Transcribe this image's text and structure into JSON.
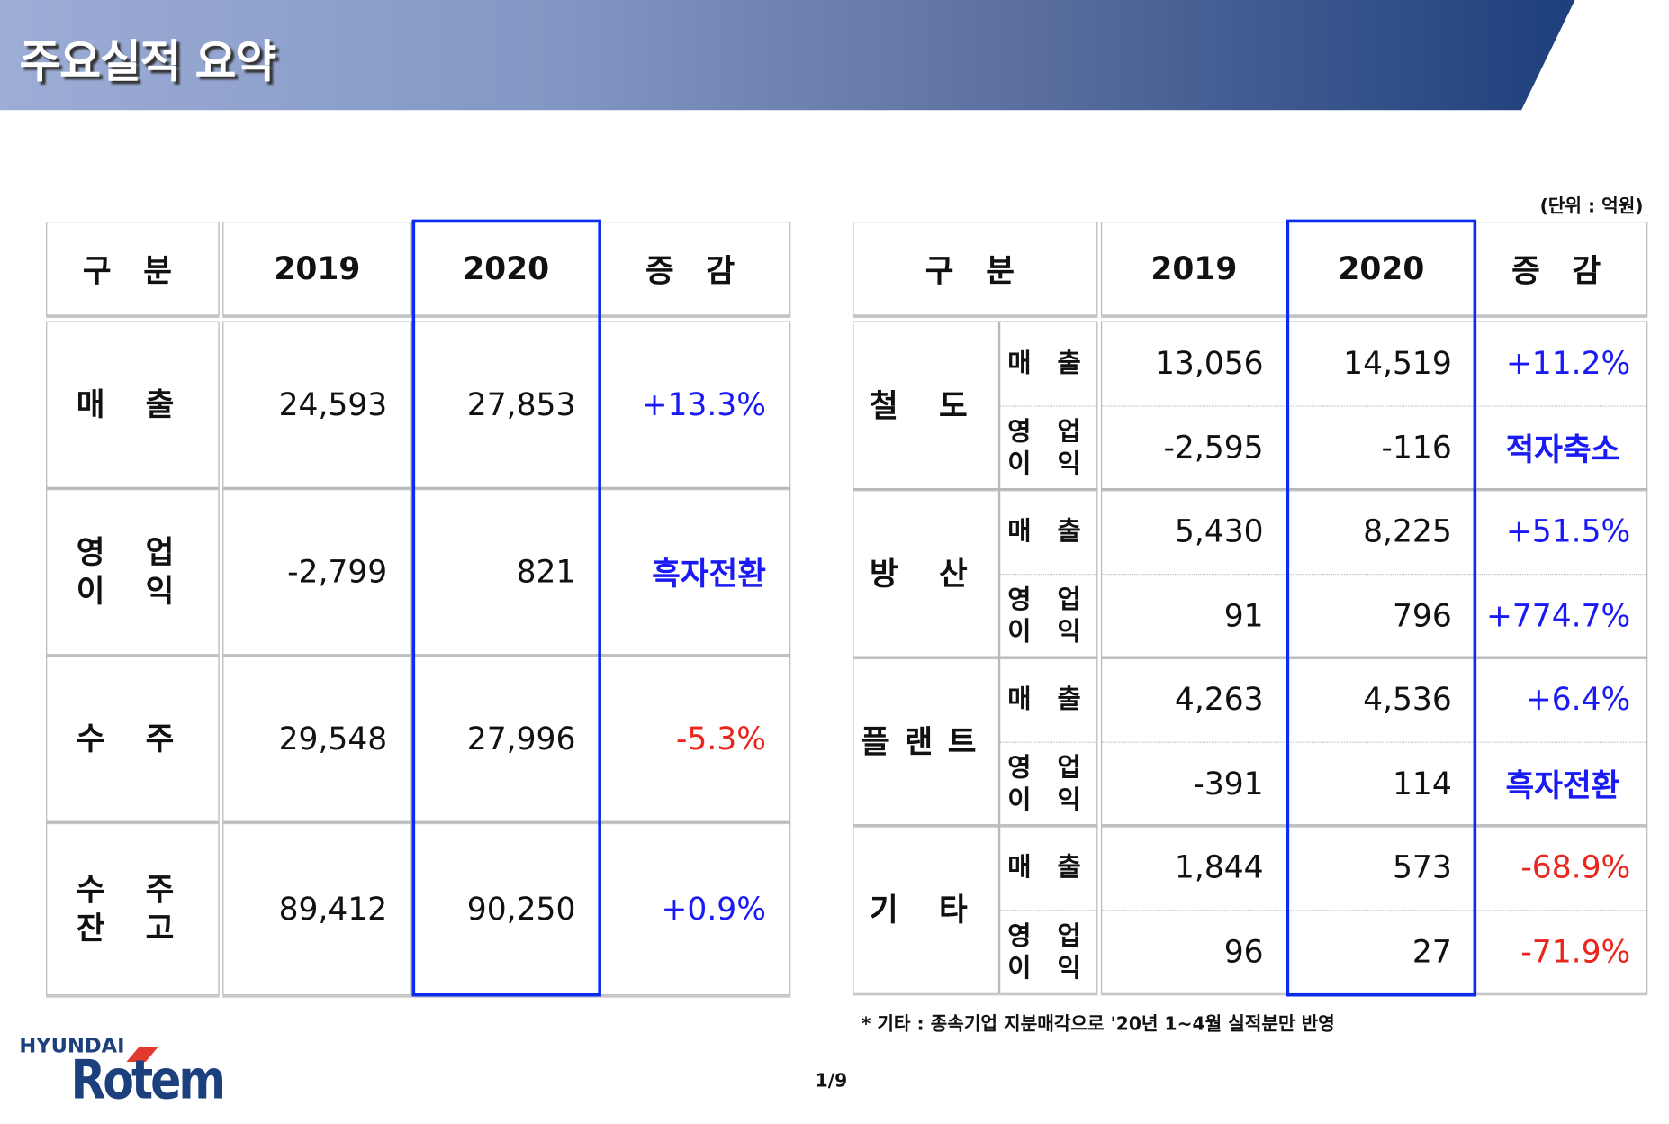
{
  "header": {
    "title": "주요실적 요약"
  },
  "unit_note": "(단위 : 억원)",
  "left_table": {
    "headers": [
      "구 분",
      "2019",
      "2020",
      "증 감"
    ],
    "rows": [
      {
        "label": "매 출",
        "y2019": "24,593",
        "y2020": "27,853",
        "change": "+13.3%",
        "change_color": "blue"
      },
      {
        "label": "영 업\n이 익",
        "y2019": "-2,799",
        "y2020": "821",
        "change": "흑자전환",
        "change_color": "blue"
      },
      {
        "label": "수 주",
        "y2019": "29,548",
        "y2020": "27,996",
        "change": "-5.3%",
        "change_color": "red"
      },
      {
        "label": "수 주\n잔 고",
        "y2019": "89,412",
        "y2020": "90,250",
        "change": "+0.9%",
        "change_color": "blue"
      }
    ]
  },
  "right_table": {
    "headers": [
      "구 분",
      "2019",
      "2020",
      "증 감"
    ],
    "groups": [
      {
        "label": "철 도",
        "rows": [
          {
            "metric": "매 출",
            "y2019": "13,056",
            "y2020": "14,519",
            "change": "+11.2%",
            "change_color": "blue"
          },
          {
            "metric": "영 업\n이 익",
            "y2019": "-2,595",
            "y2020": "-116",
            "change": "적자축소",
            "change_color": "blue"
          }
        ]
      },
      {
        "label": "방 산",
        "rows": [
          {
            "metric": "매 출",
            "y2019": "5,430",
            "y2020": "8,225",
            "change": "+51.5%",
            "change_color": "blue"
          },
          {
            "metric": "영 업\n이 익",
            "y2019": "91",
            "y2020": "796",
            "change": "+774.7%",
            "change_color": "blue"
          }
        ]
      },
      {
        "label": "플랜트",
        "rows": [
          {
            "metric": "매 출",
            "y2019": "4,263",
            "y2020": "4,536",
            "change": "+6.4%",
            "change_color": "blue"
          },
          {
            "metric": "영 업\n이 익",
            "y2019": "-391",
            "y2020": "114",
            "change": "흑자전환",
            "change_color": "blue"
          }
        ]
      },
      {
        "label": "기 타",
        "rows": [
          {
            "metric": "매 출",
            "y2019": "1,844",
            "y2020": "573",
            "change": "-68.9%",
            "change_color": "red"
          },
          {
            "metric": "영 업\n이 익",
            "y2019": "96",
            "y2020": "27",
            "change": "-71.9%",
            "change_color": "red"
          }
        ]
      }
    ]
  },
  "footnote": "* 기타 : 종속기업 지분매각으로 '20년 1~4월 실적분만 반영",
  "page_number": "1/9",
  "logo": {
    "brand": "HYUNDAI",
    "name": "Rotem"
  },
  "colors": {
    "increase": "#1a1af5",
    "decrease": "#e8261e",
    "highlight": "#0a2cf0",
    "brand": "#1c3f7e"
  }
}
